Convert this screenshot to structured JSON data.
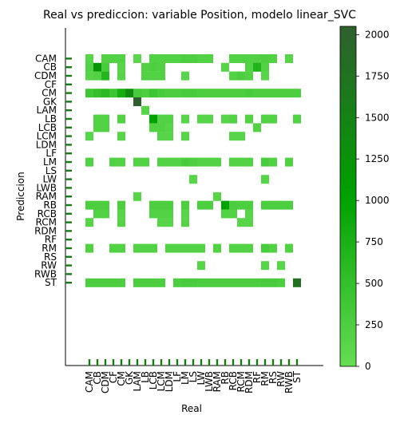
{
  "chart_data": {
    "type": "heatmap",
    "title": "Real vs prediccion: variable Position, modelo linear_SVC",
    "xlabel": "Real",
    "ylabel": "Prediccion",
    "categories": [
      "CAM",
      "CB",
      "CDM",
      "CF",
      "CM",
      "GK",
      "LAM",
      "LB",
      "LCB",
      "LCM",
      "LDM",
      "LF",
      "LM",
      "LS",
      "LW",
      "LWB",
      "RAM",
      "RB",
      "RCB",
      "RCM",
      "RDM",
      "RF",
      "RM",
      "RS",
      "RW",
      "RWB",
      "ST"
    ],
    "colorbar": {
      "min": 0,
      "max": 2050,
      "ticks": [
        0,
        250,
        500,
        750,
        1000,
        1250,
        1500,
        1750,
        2000
      ],
      "colors": [
        "#66dd55",
        "#00a000",
        "#2f5f2f"
      ]
    },
    "grid": false,
    "cells": [
      {
        "row": "CAM",
        "values": [
          [
            0,
            150
          ],
          [
            2,
            200
          ],
          [
            3,
            200
          ],
          [
            4,
            200
          ],
          [
            6,
            100
          ],
          [
            8,
            200
          ],
          [
            9,
            200
          ],
          [
            10,
            200
          ],
          [
            11,
            200
          ],
          [
            12,
            250
          ],
          [
            13,
            250
          ],
          [
            14,
            200
          ],
          [
            15,
            200
          ],
          [
            18,
            200
          ],
          [
            19,
            200
          ],
          [
            20,
            200
          ],
          [
            21,
            200
          ],
          [
            22,
            250
          ],
          [
            23,
            200
          ],
          [
            25,
            150
          ]
        ]
      },
      {
        "row": "CB",
        "values": [
          [
            0,
            200
          ],
          [
            1,
            1200
          ],
          [
            2,
            300
          ],
          [
            4,
            150
          ],
          [
            7,
            200
          ],
          [
            8,
            250
          ],
          [
            9,
            200
          ],
          [
            17,
            150
          ],
          [
            20,
            200
          ],
          [
            21,
            700
          ],
          [
            22,
            200
          ]
        ]
      },
      {
        "row": "CDM",
        "values": [
          [
            0,
            150
          ],
          [
            1,
            200
          ],
          [
            2,
            650
          ],
          [
            4,
            150
          ],
          [
            7,
            200
          ],
          [
            8,
            200
          ],
          [
            9,
            200
          ],
          [
            12,
            150
          ],
          [
            18,
            200
          ],
          [
            19,
            250
          ],
          [
            20,
            200
          ],
          [
            22,
            150
          ]
        ]
      },
      {
        "row": "CM",
        "values": [
          [
            0,
            400
          ],
          [
            1,
            500
          ],
          [
            2,
            600
          ],
          [
            3,
            400
          ],
          [
            4,
            800
          ],
          [
            5,
            1350
          ],
          [
            6,
            300
          ],
          [
            7,
            250
          ],
          [
            8,
            400
          ],
          [
            9,
            300
          ],
          [
            10,
            250
          ],
          [
            11,
            250
          ],
          [
            12,
            300
          ],
          [
            13,
            300
          ],
          [
            14,
            250
          ],
          [
            15,
            250
          ],
          [
            16,
            250
          ],
          [
            17,
            250
          ],
          [
            18,
            250
          ],
          [
            19,
            250
          ],
          [
            20,
            300
          ],
          [
            21,
            250
          ],
          [
            22,
            250
          ],
          [
            23,
            250
          ],
          [
            24,
            250
          ],
          [
            25,
            250
          ],
          [
            26,
            250
          ]
        ]
      },
      {
        "row": "GK",
        "values": [
          [
            6,
            2050
          ]
        ]
      },
      {
        "row": "LAM",
        "values": [
          [
            7,
            150
          ]
        ]
      },
      {
        "row": "LB",
        "values": [
          [
            1,
            200
          ],
          [
            2,
            200
          ],
          [
            4,
            200
          ],
          [
            8,
            1000
          ],
          [
            9,
            200
          ],
          [
            10,
            200
          ],
          [
            12,
            150
          ],
          [
            14,
            150
          ],
          [
            15,
            150
          ],
          [
            17,
            150
          ],
          [
            18,
            200
          ],
          [
            20,
            200
          ],
          [
            22,
            200
          ],
          [
            23,
            200
          ],
          [
            26,
            200
          ]
        ]
      },
      {
        "row": "LCB",
        "values": [
          [
            1,
            200
          ],
          [
            2,
            200
          ],
          [
            8,
            200
          ],
          [
            9,
            200
          ],
          [
            10,
            150
          ],
          [
            21,
            200
          ]
        ]
      },
      {
        "row": "LCM",
        "values": [
          [
            0,
            150
          ],
          [
            4,
            150
          ],
          [
            9,
            150
          ],
          [
            10,
            150
          ],
          [
            12,
            150
          ],
          [
            18,
            150
          ],
          [
            19,
            150
          ]
        ]
      },
      {
        "row": "LM",
        "values": [
          [
            0,
            200
          ],
          [
            3,
            200
          ],
          [
            4,
            200
          ],
          [
            6,
            200
          ],
          [
            7,
            200
          ],
          [
            9,
            200
          ],
          [
            10,
            200
          ],
          [
            11,
            200
          ],
          [
            12,
            300
          ],
          [
            13,
            250
          ],
          [
            14,
            200
          ],
          [
            15,
            200
          ],
          [
            16,
            200
          ],
          [
            18,
            200
          ],
          [
            19,
            200
          ],
          [
            20,
            200
          ],
          [
            22,
            300
          ],
          [
            23,
            200
          ],
          [
            25,
            200
          ]
        ]
      },
      {
        "row": "LW",
        "values": [
          [
            13,
            150
          ],
          [
            22,
            150
          ]
        ]
      },
      {
        "row": "RAM",
        "values": [
          [
            6,
            150
          ],
          [
            16,
            150
          ]
        ]
      },
      {
        "row": "RB",
        "values": [
          [
            0,
            250
          ],
          [
            1,
            250
          ],
          [
            2,
            250
          ],
          [
            4,
            250
          ],
          [
            8,
            250
          ],
          [
            9,
            250
          ],
          [
            10,
            250
          ],
          [
            12,
            250
          ],
          [
            14,
            250
          ],
          [
            15,
            250
          ],
          [
            17,
            1000
          ],
          [
            18,
            300
          ],
          [
            19,
            250
          ],
          [
            20,
            250
          ],
          [
            22,
            250
          ],
          [
            23,
            250
          ],
          [
            24,
            250
          ],
          [
            25,
            250
          ]
        ]
      },
      {
        "row": "RCB",
        "values": [
          [
            1,
            200
          ],
          [
            2,
            200
          ],
          [
            4,
            150
          ],
          [
            8,
            200
          ],
          [
            9,
            200
          ],
          [
            10,
            200
          ],
          [
            12,
            150
          ],
          [
            17,
            200
          ],
          [
            18,
            200
          ],
          [
            20,
            150
          ]
        ]
      },
      {
        "row": "RCM",
        "values": [
          [
            0,
            150
          ],
          [
            4,
            150
          ],
          [
            9,
            150
          ],
          [
            10,
            150
          ],
          [
            12,
            150
          ],
          [
            19,
            150
          ],
          [
            20,
            150
          ]
        ]
      },
      {
        "row": "RM",
        "values": [
          [
            0,
            200
          ],
          [
            3,
            200
          ],
          [
            4,
            200
          ],
          [
            6,
            200
          ],
          [
            7,
            200
          ],
          [
            8,
            200
          ],
          [
            10,
            200
          ],
          [
            11,
            200
          ],
          [
            12,
            200
          ],
          [
            13,
            200
          ],
          [
            14,
            200
          ],
          [
            16,
            200
          ],
          [
            18,
            200
          ],
          [
            19,
            200
          ],
          [
            20,
            200
          ],
          [
            22,
            300
          ],
          [
            23,
            200
          ],
          [
            25,
            200
          ]
        ]
      },
      {
        "row": "RW",
        "values": [
          [
            14,
            150
          ],
          [
            22,
            150
          ],
          [
            24,
            150
          ]
        ]
      },
      {
        "row": "ST",
        "values": [
          [
            0,
            250
          ],
          [
            1,
            250
          ],
          [
            2,
            250
          ],
          [
            3,
            250
          ],
          [
            4,
            250
          ],
          [
            6,
            250
          ],
          [
            7,
            250
          ],
          [
            8,
            250
          ],
          [
            9,
            250
          ],
          [
            11,
            250
          ],
          [
            12,
            300
          ],
          [
            13,
            300
          ],
          [
            14,
            250
          ],
          [
            15,
            250
          ],
          [
            16,
            250
          ],
          [
            17,
            250
          ],
          [
            18,
            250
          ],
          [
            19,
            250
          ],
          [
            20,
            250
          ],
          [
            21,
            250
          ],
          [
            22,
            300
          ],
          [
            23,
            300
          ],
          [
            24,
            250
          ],
          [
            26,
            1800
          ]
        ]
      }
    ]
  }
}
